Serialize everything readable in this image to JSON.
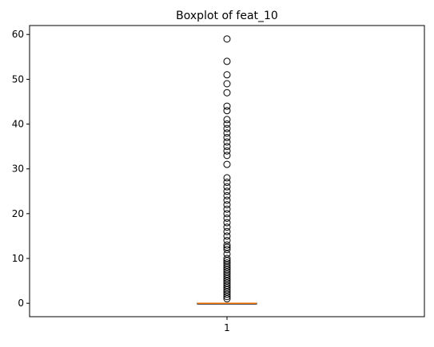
{
  "chart_data": {
    "type": "boxplot",
    "title": "Boxplot of feat_10",
    "xlabel": "",
    "ylabel": "",
    "categories": [
      "1"
    ],
    "ylim": [
      -3,
      62
    ],
    "yticks": [
      0,
      10,
      20,
      30,
      40,
      50,
      60
    ],
    "box": {
      "q1": 0,
      "median": 0,
      "q3": 0,
      "whisker_low": 0,
      "whisker_high": 0
    },
    "outliers": [
      1,
      1.5,
      2,
      2.5,
      3,
      3.5,
      4,
      4.5,
      5,
      5.5,
      6,
      6.5,
      7,
      7.5,
      8,
      8.5,
      9,
      9.5,
      10,
      11,
      12,
      12.5,
      13,
      14,
      15,
      16,
      17,
      18,
      19,
      20,
      21,
      22,
      23,
      24,
      25,
      26,
      27,
      28,
      31,
      33,
      34,
      35,
      36,
      37,
      38,
      39,
      40,
      41,
      43,
      44,
      47,
      49,
      51,
      54,
      59
    ],
    "colors": {
      "box": "#000000",
      "median": "#ff7f0e",
      "outlier": "#000000"
    },
    "grid": false
  }
}
